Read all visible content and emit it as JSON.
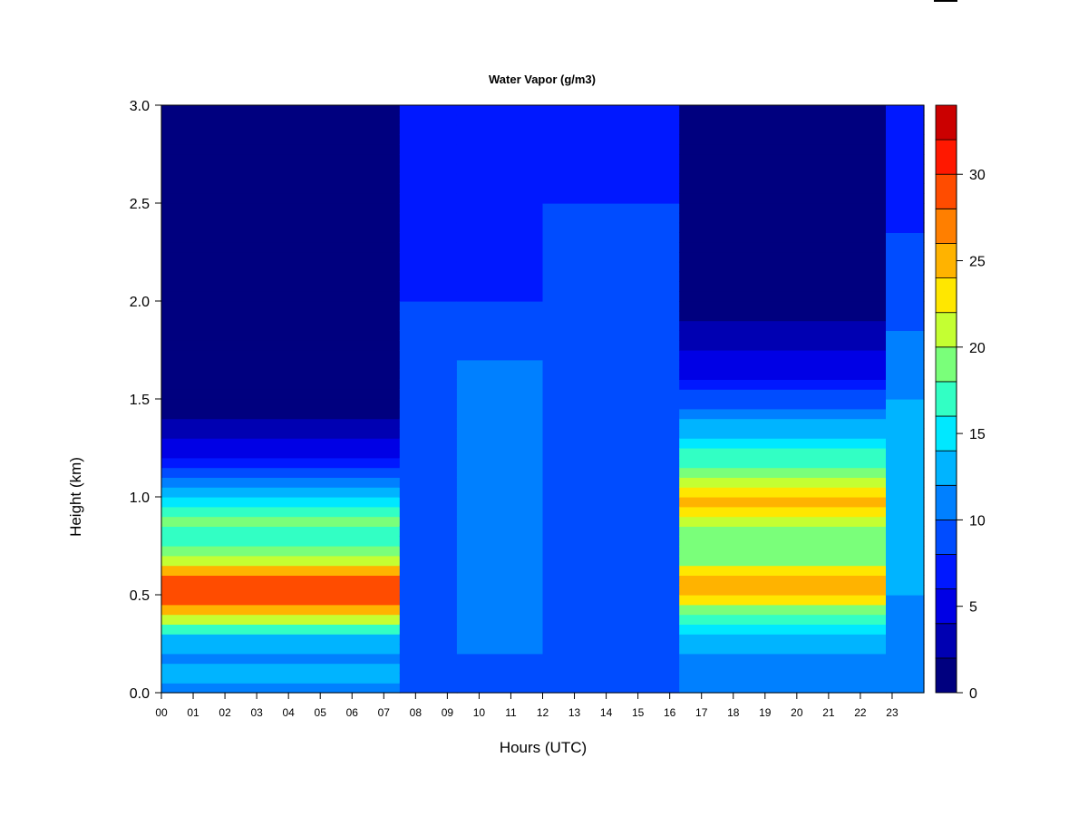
{
  "chart_data": {
    "type": "heatmap",
    "title": "Water Vapor (g/m3)",
    "xlabel": "Hours (UTC)",
    "ylabel": "Height (km)",
    "xlim": [
      0,
      24
    ],
    "ylim": [
      0.0,
      3.0
    ],
    "x_tick_labels": [
      "00",
      "01",
      "02",
      "03",
      "04",
      "05",
      "06",
      "07",
      "08",
      "09",
      "10",
      "11",
      "12",
      "13",
      "14",
      "15",
      "16",
      "17",
      "18",
      "19",
      "20",
      "21",
      "22",
      "23"
    ],
    "y_tick_labels": [
      "0.0",
      "0.5",
      "1.0",
      "1.5",
      "2.0",
      "2.5",
      "3.0"
    ],
    "y_ticks": [
      0.0,
      0.5,
      1.0,
      1.5,
      2.0,
      2.5,
      3.0
    ],
    "colorbar": {
      "min": 0,
      "max": 34,
      "levels": [
        0,
        2,
        4,
        6,
        8,
        10,
        12,
        14,
        16,
        18,
        20,
        22,
        24,
        26,
        28,
        30,
        32,
        34
      ],
      "colors": [
        "#00007f",
        "#0000b2",
        "#0000e5",
        "#0018ff",
        "#004cff",
        "#0080ff",
        "#00b4ff",
        "#00e8ff",
        "#32ffc4",
        "#7aff7a",
        "#c4ff32",
        "#ffe700",
        "#ffb300",
        "#ff7f00",
        "#ff4c00",
        "#ff1800",
        "#cb0000",
        "#7f0000"
      ],
      "tick_values": [
        0,
        5,
        10,
        15,
        20,
        25,
        30
      ],
      "tick_labels": [
        "0",
        "5",
        "10",
        "15",
        "20",
        "25",
        "30"
      ]
    },
    "regimes": [
      {
        "hours": [
          0,
          7.5
        ],
        "profile": [
          [
            0.0,
            11
          ],
          [
            0.1,
            12.5
          ],
          [
            0.2,
            11.5
          ],
          [
            0.3,
            14
          ],
          [
            0.4,
            24
          ],
          [
            0.5,
            30
          ],
          [
            0.6,
            28
          ],
          [
            0.7,
            20
          ],
          [
            0.8,
            16
          ],
          [
            0.9,
            19
          ],
          [
            1.0,
            14
          ],
          [
            1.1,
            11
          ],
          [
            1.2,
            6
          ],
          [
            1.35,
            3
          ],
          [
            1.5,
            0
          ],
          [
            3.0,
            0
          ]
        ]
      },
      {
        "hours": [
          7.5,
          9.3
        ],
        "profile": [
          [
            0.0,
            9
          ],
          [
            1.5,
            9
          ],
          [
            2.0,
            8
          ],
          [
            2.5,
            7
          ],
          [
            3.0,
            6
          ]
        ]
      },
      {
        "hours": [
          9.3,
          12.0
        ],
        "profile": [
          [
            0.0,
            9
          ],
          [
            0.4,
            11
          ],
          [
            1.0,
            12
          ],
          [
            1.7,
            10
          ],
          [
            2.0,
            8
          ],
          [
            3.0,
            6
          ]
        ]
      },
      {
        "hours": [
          12.0,
          16.3
        ],
        "profile": [
          [
            0.0,
            9
          ],
          [
            2.2,
            9
          ],
          [
            2.5,
            8
          ],
          [
            3.0,
            6
          ]
        ]
      },
      {
        "hours": [
          16.3,
          22.8
        ],
        "profile": [
          [
            0.0,
            11
          ],
          [
            0.1,
            11
          ],
          [
            0.3,
            13
          ],
          [
            0.4,
            17
          ],
          [
            0.5,
            26
          ],
          [
            0.6,
            24
          ],
          [
            0.7,
            18
          ],
          [
            0.8,
            18
          ],
          [
            0.95,
            25
          ],
          [
            1.1,
            20
          ],
          [
            1.25,
            16
          ],
          [
            1.4,
            12
          ],
          [
            1.6,
            6
          ],
          [
            1.9,
            2
          ],
          [
            3.0,
            0
          ]
        ]
      },
      {
        "hours": [
          22.8,
          24.0
        ],
        "profile": [
          [
            0.0,
            11
          ],
          [
            0.5,
            12
          ],
          [
            1.0,
            13
          ],
          [
            1.5,
            12
          ],
          [
            2.0,
            9
          ],
          [
            3.0,
            6
          ]
        ]
      }
    ]
  }
}
